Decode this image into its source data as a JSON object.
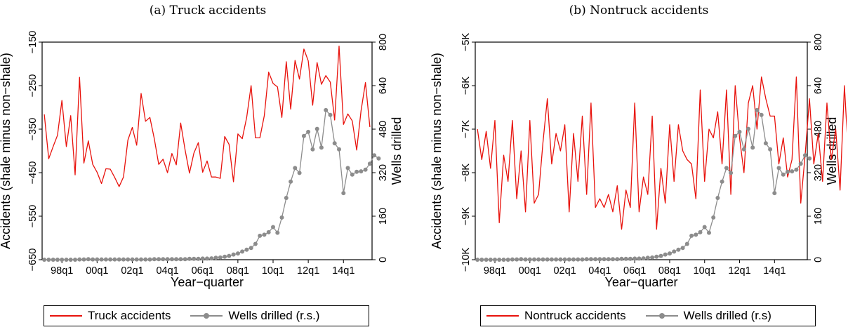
{
  "colors": {
    "series_1": "#e8120c",
    "series_2": "#8c8c8c"
  },
  "chart_data": [
    {
      "type": "line",
      "title": "(a) Truck accidents",
      "xlabel": "Year−quarter",
      "ylabel": "Accidents (shale minus non−shale)",
      "y2label": "Wells drilled",
      "xticks": [
        "98q1",
        "00q1",
        "02q1",
        "04q1",
        "06q1",
        "08q1",
        "10q1",
        "12q1",
        "14q1"
      ],
      "ylim": [
        -650,
        -150
      ],
      "yticks": [
        "−650",
        "−550",
        "−450",
        "−350",
        "−250",
        "−150"
      ],
      "y2lim": [
        0,
        800
      ],
      "y2ticks": [
        "0",
        "160",
        "320",
        "480",
        "640",
        "800"
      ],
      "legend_position": "bottom",
      "series": [
        {
          "name": "Truck accidents",
          "axis": "left",
          "values": [
            -316,
            -418,
            -390,
            -364,
            -284,
            -390,
            -319,
            -455,
            -231,
            -428,
            -377,
            -431,
            -449,
            -475,
            -441,
            -442,
            -461,
            -482,
            -460,
            -375,
            -346,
            -387,
            -268,
            -332,
            -323,
            -372,
            -431,
            -419,
            -450,
            -406,
            -432,
            -336,
            -398,
            -451,
            -405,
            -381,
            -449,
            -423,
            -460,
            -460,
            -463,
            -367,
            -385,
            -471,
            -361,
            -372,
            -323,
            -250,
            -370,
            -370,
            -319,
            -219,
            -245,
            -253,
            -323,
            -195,
            -304,
            -192,
            -235,
            -166,
            -193,
            -295,
            -197,
            -247,
            -227,
            -242,
            -329,
            -159,
            -339,
            -315,
            -331,
            -398,
            -308,
            -243,
            -345
          ]
        },
        {
          "name": "Wells drilled (r.s.)",
          "axis": "right",
          "values": [
            0,
            0,
            0,
            0,
            0,
            0,
            0,
            0,
            1,
            1,
            2,
            1,
            1,
            1,
            1,
            1,
            1,
            1,
            1,
            1,
            1,
            1,
            1,
            1,
            1,
            2,
            2,
            2,
            2,
            2,
            2,
            2,
            2,
            3,
            3,
            3,
            4,
            4,
            5,
            7,
            8,
            11,
            14,
            19,
            23,
            30,
            37,
            43,
            58,
            88,
            92,
            101,
            120,
            99,
            155,
            227,
            287,
            337,
            319,
            455,
            470,
            406,
            481,
            412,
            550,
            532,
            428,
            406,
            245,
            337,
            313,
            323,
            325,
            331,
            353,
            384,
            372
          ]
        }
      ]
    },
    {
      "type": "line",
      "title": "(b) Nontruck accidents",
      "xlabel": "Year−quarter",
      "ylabel": "Accidents (shale minus non−shale)",
      "y2label": "Wells drilled",
      "xticks": [
        "98q1",
        "00q1",
        "02q1",
        "04q1",
        "06q1",
        "08q1",
        "10q1",
        "12q1",
        "14q1"
      ],
      "ylim": [
        -10000,
        -5000
      ],
      "yticks": [
        "−10K",
        "−9K",
        "−8K",
        "−7K",
        "−6K",
        "−5K"
      ],
      "y2lim": [
        0,
        800
      ],
      "y2ticks": [
        "0",
        "160",
        "320",
        "480",
        "640",
        "800"
      ],
      "legend_position": "bottom",
      "series": [
        {
          "name": "Nontruck accidents",
          "axis": "left",
          "values": [
            -7000,
            -7700,
            -7050,
            -7900,
            -6800,
            -9150,
            -7600,
            -8200,
            -6800,
            -8600,
            -7500,
            -8900,
            -6800,
            -8700,
            -8500,
            -7300,
            -6300,
            -7800,
            -7100,
            -7500,
            -6900,
            -8900,
            -7100,
            -8200,
            -6700,
            -8500,
            -6400,
            -8800,
            -8600,
            -8800,
            -8500,
            -8900,
            -8300,
            -9300,
            -8400,
            -8800,
            -6400,
            -8900,
            -8100,
            -8500,
            -6700,
            -9300,
            -7900,
            -8700,
            -6900,
            -8200,
            -6900,
            -7500,
            -7700,
            -7800,
            -8600,
            -6100,
            -8200,
            -7000,
            -7200,
            -6600,
            -7800,
            -6100,
            -8500,
            -6000,
            -7200,
            -8000,
            -6400,
            -6000,
            -7000,
            -5800,
            -6300,
            -6700,
            -6700,
            -7800,
            -7200,
            -8100,
            -7700,
            -5800,
            -8700,
            -7600,
            -6300,
            -7800,
            -7100,
            -8200,
            -6400,
            -7700,
            -7000,
            -8400,
            -6000,
            -7800,
            -6600,
            -8500,
            -7200,
            -8100,
            -7000,
            -8500,
            -6800,
            -7300,
            -7200,
            -7400,
            -7900,
            -6700,
            -8300,
            -7300,
            -8200,
            -7500,
            -6400,
            -7900,
            -8000,
            -7200,
            -8300,
            -6800,
            -7600,
            -7900,
            -7100,
            -8200,
            -7400,
            -7700,
            -8000,
            -7200,
            -8100,
            -7300,
            -7700,
            -7800,
            -6500,
            -8200,
            -7500,
            -7900
          ]
        },
        {
          "name": "Wells drilled (r.s)",
          "axis": "right",
          "values": [
            0,
            0,
            0,
            0,
            0,
            0,
            0,
            0,
            1,
            1,
            2,
            1,
            1,
            1,
            1,
            1,
            1,
            1,
            1,
            1,
            1,
            1,
            1,
            1,
            1,
            2,
            2,
            2,
            2,
            2,
            2,
            2,
            2,
            3,
            3,
            3,
            4,
            4,
            5,
            7,
            8,
            11,
            14,
            19,
            23,
            30,
            37,
            43,
            58,
            88,
            92,
            101,
            120,
            99,
            155,
            227,
            287,
            337,
            319,
            455,
            470,
            406,
            481,
            412,
            550,
            532,
            428,
            406,
            245,
            337,
            313,
            323,
            325,
            331,
            353,
            384,
            372
          ]
        }
      ]
    }
  ]
}
